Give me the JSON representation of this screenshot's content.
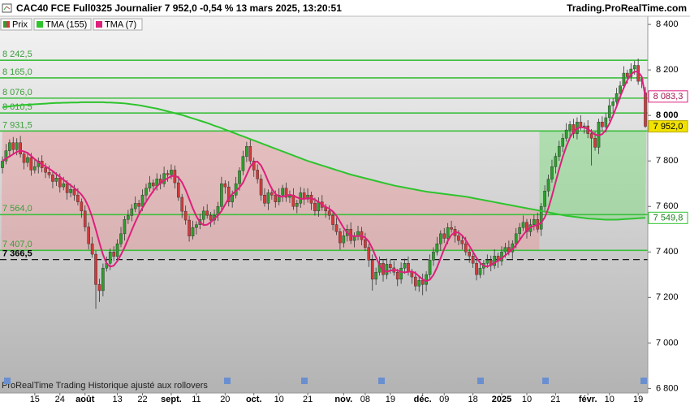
{
  "chart_data": {
    "type": "candlestick",
    "title": "CAC40 FCE Full0325 Journalier 7 952,0 -0,54 % 13 mars 2025, 13:20:51",
    "source": "Trading.ProRealTime.com",
    "note": "ProRealTime Trading  Historique ajusté aux rollovers",
    "legend_label": "Prix",
    "up_color": "#2e9e2e",
    "down_color": "#d23a3a",
    "last_price_label": "7 952,0",
    "categories": [
      null,
      null,
      null,
      null,
      null,
      null,
      null,
      null,
      null,
      "15",
      null,
      null,
      null,
      null,
      null,
      null,
      "24",
      null,
      null,
      null,
      null,
      null,
      null,
      "août",
      null,
      null,
      null,
      null,
      null,
      null,
      null,
      null,
      "13",
      null,
      null,
      null,
      null,
      null,
      null,
      "22",
      null,
      null,
      null,
      null,
      null,
      null,
      null,
      "sept.",
      null,
      null,
      null,
      null,
      null,
      null,
      "11",
      null,
      null,
      null,
      null,
      null,
      null,
      null,
      "20",
      null,
      null,
      null,
      null,
      null,
      null,
      null,
      "oct.",
      null,
      null,
      null,
      null,
      null,
      null,
      "10",
      null,
      null,
      null,
      null,
      null,
      null,
      null,
      "21",
      null,
      null,
      null,
      null,
      null,
      null,
      null,
      null,
      null,
      "nov.",
      null,
      null,
      null,
      null,
      null,
      "08",
      null,
      null,
      null,
      null,
      null,
      null,
      "19",
      null,
      null,
      null,
      null,
      null,
      null,
      null,
      null,
      "déc.",
      null,
      null,
      null,
      null,
      null,
      "09",
      null,
      null,
      null,
      null,
      null,
      null,
      null,
      "18",
      null,
      null,
      null,
      null,
      null,
      null,
      null,
      "2025",
      null,
      null,
      null,
      null,
      null,
      null,
      "10",
      null,
      null,
      null,
      null,
      null,
      null,
      null,
      "21",
      null,
      null,
      null,
      null,
      null,
      null,
      null,
      null,
      "févr.",
      null,
      null,
      null,
      null,
      null,
      "10",
      null,
      null,
      null,
      null,
      null,
      null,
      null,
      "19",
      null,
      null
    ],
    "open": [
      7770,
      7800,
      7845,
      7880,
      7850,
      7880,
      7830,
      7793,
      7815,
      7760,
      7775,
      7800,
      7770,
      7750,
      7739,
      7710,
      7725,
      7686,
      7700,
      7660,
      7675,
      7650,
      7620,
      7580,
      7510,
      7436,
      7390,
      7257,
      7230,
      7329,
      7350,
      7400,
      7380,
      7436,
      7480,
      7543,
      7560,
      7590,
      7614,
      7600,
      7650,
      7680,
      7704,
      7690,
      7721,
      7700,
      7745,
      7739,
      7760,
      7704,
      7640,
      7579,
      7540,
      7470,
      7507,
      7520,
      7543,
      7580,
      7561,
      7540,
      7561,
      7600,
      7700,
      7686,
      7620,
      7650,
      7700,
      7757,
      7820,
      7864,
      7800,
      7760,
      7721,
      7650,
      7614,
      7660,
      7650,
      7620,
      7650,
      7680,
      7640,
      7650,
      7600,
      7614,
      7660,
      7632,
      7650,
      7614,
      7580,
      7620,
      7596,
      7580,
      7561,
      7520,
      7489,
      7440,
      7471,
      7500,
      7450,
      7471,
      7490,
      7454,
      7420,
      7364,
      7280,
      7311,
      7350,
      7300,
      7346,
      7330,
      7311,
      7280,
      7329,
      7350,
      7311,
      7290,
      7250,
      7275,
      7257,
      7300,
      7364,
      7400,
      7436,
      7480,
      7460,
      7507,
      7500,
      7471,
      7450,
      7436,
      7400,
      7382,
      7350,
      7300,
      7329,
      7350,
      7364,
      7340,
      7382,
      7360,
      7400,
      7420,
      7400,
      7436,
      7480,
      7507,
      7530,
      7489,
      7520,
      7543,
      7500,
      7600,
      7668,
      7720,
      7775,
      7820,
      7864,
      7900,
      7936,
      7960,
      7920,
      7971,
      7950,
      7954,
      7920,
      7900,
      7860,
      7971,
      7950,
      7990,
      8043,
      8060,
      8096,
      8130,
      8186,
      8170,
      8204,
      8220,
      8150,
      8100
    ],
    "high": [
      7820,
      7875,
      7895,
      7905,
      7900,
      7910,
      7845,
      7840,
      7835,
      7805,
      7815,
      7825,
      7790,
      7780,
      7754,
      7750,
      7745,
      7730,
      7715,
      7700,
      7695,
      7680,
      7635,
      7605,
      7530,
      7466,
      7405,
      7282,
      7349,
      7380,
      7415,
      7425,
      7456,
      7510,
      7558,
      7585,
      7610,
      7644,
      7629,
      7675,
      7700,
      7734,
      7719,
      7746,
      7741,
      7775,
      7760,
      7785,
      7780,
      7734,
      7655,
      7604,
      7560,
      7537,
      7535,
      7568,
      7600,
      7610,
      7576,
      7586,
      7620,
      7730,
      7715,
      7711,
      7670,
      7730,
      7772,
      7845,
      7884,
      7894,
      7815,
      7785,
      7741,
      7680,
      7675,
      7685,
      7670,
      7680,
      7695,
      7705,
      7670,
      7680,
      7629,
      7685,
      7680,
      7680,
      7665,
      7639,
      7640,
      7650,
      7611,
      7605,
      7581,
      7550,
      7504,
      7496,
      7520,
      7530,
      7486,
      7515,
      7510,
      7484,
      7435,
      7389,
      7331,
      7380,
      7365,
      7371,
      7366,
      7360,
      7326,
      7354,
      7370,
      7380,
      7326,
      7315,
      7295,
      7305,
      7315,
      7389,
      7420,
      7466,
      7495,
      7505,
      7527,
      7537,
      7515,
      7496,
      7470,
      7466,
      7415,
      7407,
      7370,
      7359,
      7365,
      7389,
      7384,
      7412,
      7397,
      7425,
      7440,
      7450,
      7451,
      7505,
      7527,
      7560,
      7545,
      7545,
      7563,
      7573,
      7615,
      7693,
      7740,
      7805,
      7835,
      7889,
      7920,
      7966,
      7975,
      7985,
      7991,
      8001,
      7969,
      7979,
      7940,
      7930,
      7986,
      7996,
      8010,
      8073,
      8075,
      8121,
      8150,
      8216,
      8201,
      8229,
      8240,
      8250,
      8175,
      8125
    ],
    "low": [
      7745,
      7785,
      7815,
      7830,
      7825,
      7815,
      7763,
      7773,
      7735,
      7745,
      7745,
      7750,
      7725,
      7724,
      7680,
      7690,
      7661,
      7671,
      7630,
      7640,
      7625,
      7605,
      7550,
      7490,
      7411,
      7375,
      7150,
      7180,
      7205,
      7314,
      7320,
      7360,
      7355,
      7421,
      7450,
      7523,
      7535,
      7575,
      7570,
      7580,
      7625,
      7665,
      7660,
      7670,
      7675,
      7685,
      7709,
      7719,
      7679,
      7625,
      7549,
      7520,
      7445,
      7455,
      7477,
      7500,
      7518,
      7546,
      7510,
      7520,
      7536,
      7585,
      7656,
      7600,
      7595,
      7635,
      7670,
      7737,
      7795,
      7785,
      7730,
      7701,
      7625,
      7599,
      7584,
      7630,
      7595,
      7605,
      7620,
      7620,
      7615,
      7585,
      7570,
      7594,
      7607,
      7617,
      7584,
      7560,
      7555,
      7581,
      7550,
      7541,
      7495,
      7474,
      7410,
      7420,
      7446,
      7435,
      7420,
      7451,
      7429,
      7405,
      7334,
      7230,
      7255,
      7296,
      7270,
      7280,
      7305,
      7296,
      7250,
      7260,
      7304,
      7296,
      7260,
      7230,
      7225,
      7210,
      7227,
      7280,
      7339,
      7385,
      7406,
      7440,
      7435,
      7485,
      7441,
      7430,
      7411,
      7385,
      7352,
      7330,
      7275,
      7285,
      7299,
      7330,
      7315,
      7325,
      7330,
      7340,
      7375,
      7385,
      7370,
      7416,
      7455,
      7492,
      7459,
      7469,
      7495,
      7485,
      7470,
      7580,
      7643,
      7705,
      7745,
      7800,
      7839,
      7885,
      7906,
      7900,
      7895,
      7935,
      7920,
      7900,
      7780,
      7845,
      7830,
      7930,
      7925,
      7975,
      8013,
      8040,
      8071,
      8115,
      8140,
      8150,
      8179,
      8135,
      8120,
      7945
    ],
    "close": [
      7800,
      7845,
      7880,
      7850,
      7880,
      7830,
      7793,
      7815,
      7760,
      7775,
      7800,
      7770,
      7750,
      7739,
      7710,
      7725,
      7686,
      7700,
      7660,
      7675,
      7650,
      7620,
      7580,
      7510,
      7436,
      7390,
      7257,
      7230,
      7329,
      7350,
      7400,
      7380,
      7436,
      7480,
      7543,
      7560,
      7590,
      7614,
      7600,
      7650,
      7680,
      7704,
      7690,
      7721,
      7700,
      7745,
      7739,
      7760,
      7704,
      7640,
      7579,
      7540,
      7470,
      7507,
      7520,
      7543,
      7580,
      7561,
      7540,
      7561,
      7600,
      7700,
      7686,
      7620,
      7650,
      7700,
      7757,
      7820,
      7864,
      7800,
      7760,
      7721,
      7650,
      7614,
      7660,
      7650,
      7620,
      7650,
      7680,
      7640,
      7650,
      7600,
      7614,
      7660,
      7632,
      7650,
      7614,
      7580,
      7620,
      7596,
      7580,
      7561,
      7520,
      7489,
      7440,
      7471,
      7500,
      7450,
      7471,
      7490,
      7454,
      7420,
      7364,
      7280,
      7311,
      7350,
      7300,
      7346,
      7330,
      7311,
      7280,
      7329,
      7350,
      7311,
      7290,
      7250,
      7275,
      7257,
      7300,
      7364,
      7400,
      7436,
      7480,
      7460,
      7507,
      7500,
      7471,
      7450,
      7436,
      7400,
      7382,
      7350,
      7300,
      7329,
      7350,
      7364,
      7340,
      7382,
      7360,
      7400,
      7420,
      7400,
      7436,
      7480,
      7507,
      7530,
      7489,
      7520,
      7543,
      7500,
      7600,
      7668,
      7720,
      7775,
      7820,
      7864,
      7900,
      7936,
      7960,
      7920,
      7971,
      7950,
      7954,
      7920,
      7900,
      7860,
      7971,
      7950,
      7990,
      8043,
      8060,
      8096,
      8130,
      8186,
      8170,
      8204,
      8220,
      8150,
      8160,
      7952
    ],
    "series": [
      {
        "name": "TMA (155)",
        "color": "#2dc42d",
        "last_label": "7 549,8",
        "values": [
          8036,
          8038,
          8040,
          8042,
          8043,
          8045,
          8046,
          8047,
          8048,
          8049,
          8050,
          8051,
          8052,
          8053,
          8054,
          8055,
          8055,
          8056,
          8056,
          8057,
          8057,
          8057,
          8058,
          8058,
          8058,
          8058,
          8058,
          8058,
          8058,
          8057,
          8057,
          8056,
          8055,
          8054,
          8053,
          8051,
          8049,
          8047,
          8045,
          8042,
          8039,
          8036,
          8033,
          8030,
          8026,
          8022,
          8018,
          8014,
          8010,
          8006,
          8002,
          7997,
          7992,
          7987,
          7982,
          7977,
          7972,
          7967,
          7961,
          7955,
          7950,
          7944,
          7938,
          7932,
          7926,
          7920,
          7914,
          7908,
          7902,
          7896,
          7890,
          7884,
          7878,
          7872,
          7866,
          7860,
          7854,
          7848,
          7842,
          7836,
          7830,
          7824,
          7818,
          7812,
          7806,
          7800,
          7795,
          7790,
          7785,
          7780,
          7775,
          7770,
          7765,
          7760,
          7755,
          7750,
          7745,
          7740,
          7736,
          7732,
          7728,
          7724,
          7720,
          7716,
          7712,
          7708,
          7704,
          7700,
          7696,
          7692,
          7689,
          7686,
          7683,
          7680,
          7677,
          7674,
          7671,
          7668,
          7665,
          7663,
          7661,
          7659,
          7657,
          7655,
          7653,
          7651,
          7649,
          7647,
          7645,
          7643,
          7640,
          7637,
          7634,
          7631,
          7628,
          7625,
          7622,
          7619,
          7616,
          7613,
          7610,
          7607,
          7604,
          7601,
          7598,
          7595,
          7592,
          7589,
          7586,
          7583,
          7580,
          7577,
          7574,
          7571,
          7568,
          7565,
          7562,
          7559,
          7557,
          7555,
          7553,
          7551,
          7549,
          7547,
          7546,
          7545,
          7544,
          7543,
          7542,
          7542,
          7542,
          7542,
          7543,
          7544,
          7545,
          7546,
          7547,
          7548,
          7549,
          7549.8
        ]
      },
      {
        "name": "TMA (7)",
        "color": "#de1f7c",
        "last_label": "8 083,3",
        "values": [
          7800,
          7810,
          7820,
          7830,
          7840,
          7845,
          7842,
          7835,
          7822,
          7808,
          7795,
          7785,
          7776,
          7766,
          7755,
          7742,
          7730,
          7717,
          7705,
          7693,
          7681,
          7668,
          7652,
          7630,
          7597,
          7553,
          7499,
          7441,
          7388,
          7350,
          7335,
          7340,
          7360,
          7388,
          7420,
          7457,
          7495,
          7532,
          7565,
          7594,
          7620,
          7645,
          7668,
          7688,
          7703,
          7714,
          7724,
          7733,
          7735,
          7727,
          7706,
          7673,
          7633,
          7592,
          7557,
          7530,
          7518,
          7520,
          7531,
          7546,
          7560,
          7580,
          7608,
          7636,
          7655,
          7668,
          7683,
          7705,
          7740,
          7775,
          7795,
          7797,
          7780,
          7748,
          7710,
          7678,
          7655,
          7644,
          7643,
          7648,
          7651,
          7648,
          7640,
          7634,
          7633,
          7636,
          7636,
          7630,
          7620,
          7608,
          7598,
          7590,
          7578,
          7559,
          7533,
          7506,
          7484,
          7472,
          7469,
          7470,
          7470,
          7463,
          7446,
          7415,
          7377,
          7342,
          7320,
          7313,
          7318,
          7322,
          7319,
          7312,
          7310,
          7313,
          7314,
          7307,
          7293,
          7279,
          7272,
          7278,
          7299,
          7332,
          7373,
          7414,
          7449,
          7475,
          7487,
          7485,
          7472,
          7452,
          7427,
          7400,
          7374,
          7352,
          7339,
          7336,
          7342,
          7352,
          7362,
          7372,
          7385,
          7398,
          7412,
          7430,
          7452,
          7475,
          7495,
          7508,
          7515,
          7518,
          7528,
          7552,
          7592,
          7646,
          7706,
          7764,
          7818,
          7864,
          7902,
          7929,
          7943,
          7948,
          7947,
          7940,
          7928,
          7916,
          7912,
          7918,
          7936,
          7964,
          8000,
          8040,
          8083,
          8122,
          8156,
          8180,
          8193,
          8192,
          8170,
          8083.3
        ]
      }
    ],
    "levels": [
      {
        "value": 8242.5,
        "label": "8 242,5",
        "color": "#3cbf3c"
      },
      {
        "value": 8165,
        "label": "8 165,0",
        "color": "#3cbf3c"
      },
      {
        "value": 8076,
        "label": "8 076,0",
        "color": "#3cbf3c"
      },
      {
        "value": 8010.5,
        "label": "8 010,5",
        "color": "#3cbf3c"
      },
      {
        "value": 7931.5,
        "label": "7 931,5",
        "color": "#3cbf3c"
      },
      {
        "value": 7564,
        "label": "7 564,0",
        "color": "#3cbf3c"
      },
      {
        "value": 7407,
        "label": "7 407,0",
        "color": "#3cbf3c"
      },
      {
        "value": 7366.5,
        "label": "7 366,5",
        "color": "#000000",
        "style": "dashed"
      }
    ],
    "ylim": [
      6780,
      8436
    ],
    "yticks": [
      {
        "value": 6800,
        "label": "6 800"
      },
      {
        "value": 7000,
        "label": "7 000"
      },
      {
        "value": 7200,
        "label": "7 200"
      },
      {
        "value": 7400,
        "label": "7 400"
      },
      {
        "value": 7600,
        "label": "7 600"
      },
      {
        "value": 7800,
        "label": "7 800"
      },
      {
        "value": 8000,
        "label": "8 000",
        "bold": true
      },
      {
        "value": 8200,
        "label": "8 200"
      },
      {
        "value": 8400,
        "label": "8 400"
      }
    ]
  }
}
